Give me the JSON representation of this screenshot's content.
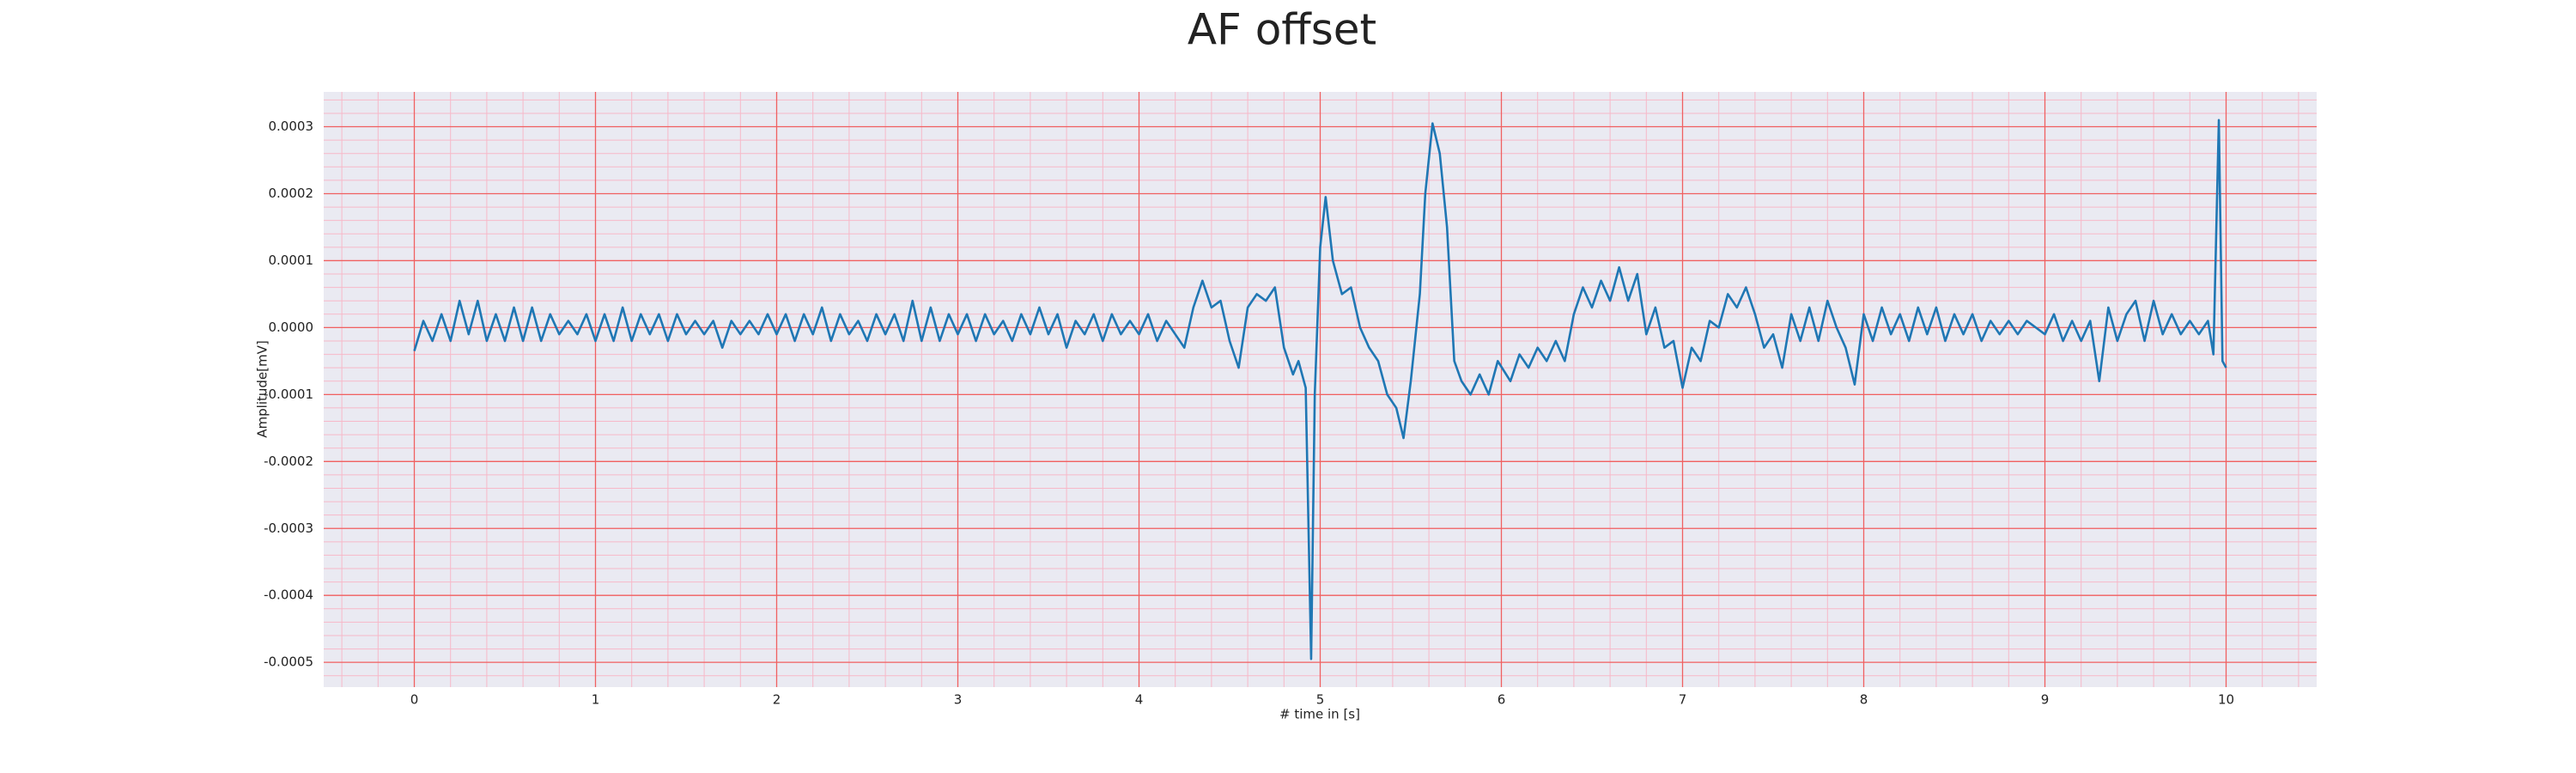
{
  "chart_data": {
    "type": "line",
    "title": "AF offset",
    "xlabel": "# time in [s]",
    "ylabel": "Amplitude[mV]",
    "color": "#1f77b4",
    "grid": true,
    "minor_grid": true,
    "xlim": [
      -0.5,
      10.5
    ],
    "xticks": [
      0,
      1,
      2,
      3,
      4,
      5,
      6,
      7,
      8,
      9,
      10
    ],
    "ylim": [
      -0.000537,
      0.000352
    ],
    "yticks": [
      {
        "value": -0.0005,
        "label": "-0.0005"
      },
      {
        "value": -0.0004,
        "label": "-0.0004"
      },
      {
        "value": -0.0003,
        "label": "-0.0003"
      },
      {
        "value": -0.0002,
        "label": "-0.0002"
      },
      {
        "value": -0.0001,
        "label": "-0.0001"
      },
      {
        "value": 0,
        "label": "0.0000"
      },
      {
        "value": 0.0001,
        "label": "0.0001"
      },
      {
        "value": 0.0002,
        "label": "0.0002"
      },
      {
        "value": 0.0003,
        "label": "0.0003"
      }
    ],
    "x": [
      0,
      0.05,
      0.1,
      0.15,
      0.2,
      0.25,
      0.3,
      0.35,
      0.4,
      0.45,
      0.5,
      0.55,
      0.6,
      0.65,
      0.7,
      0.75,
      0.8,
      0.85,
      0.9,
      0.95,
      1.0,
      1.05,
      1.1,
      1.15,
      1.2,
      1.25,
      1.3,
      1.35,
      1.4,
      1.45,
      1.5,
      1.55,
      1.6,
      1.65,
      1.7,
      1.75,
      1.8,
      1.85,
      1.9,
      1.95,
      2.0,
      2.05,
      2.1,
      2.15,
      2.2,
      2.25,
      2.3,
      2.35,
      2.4,
      2.45,
      2.5,
      2.55,
      2.6,
      2.65,
      2.7,
      2.75,
      2.8,
      2.85,
      2.9,
      2.95,
      3.0,
      3.05,
      3.1,
      3.15,
      3.2,
      3.25,
      3.3,
      3.35,
      3.4,
      3.45,
      3.5,
      3.55,
      3.6,
      3.65,
      3.7,
      3.75,
      3.8,
      3.85,
      3.9,
      3.95,
      4.0,
      4.05,
      4.1,
      4.15,
      4.2,
      4.25,
      4.3,
      4.35,
      4.4,
      4.45,
      4.5,
      4.55,
      4.6,
      4.65,
      4.7,
      4.75,
      4.8,
      4.85,
      4.88,
      4.92,
      4.95,
      4.97,
      5.0,
      5.03,
      5.07,
      5.12,
      5.17,
      5.22,
      5.27,
      5.32,
      5.37,
      5.42,
      5.46,
      5.5,
      5.55,
      5.58,
      5.62,
      5.66,
      5.7,
      5.74,
      5.78,
      5.83,
      5.88,
      5.93,
      5.98,
      6.05,
      6.1,
      6.15,
      6.2,
      6.25,
      6.3,
      6.35,
      6.4,
      6.45,
      6.5,
      6.55,
      6.6,
      6.65,
      6.7,
      6.75,
      6.8,
      6.85,
      6.9,
      6.95,
      7.0,
      7.05,
      7.1,
      7.15,
      7.2,
      7.25,
      7.3,
      7.35,
      7.4,
      7.45,
      7.5,
      7.55,
      7.6,
      7.65,
      7.7,
      7.75,
      7.8,
      7.85,
      7.9,
      7.95,
      8.0,
      8.05,
      8.1,
      8.15,
      8.2,
      8.25,
      8.3,
      8.35,
      8.4,
      8.45,
      8.5,
      8.55,
      8.6,
      8.65,
      8.7,
      8.75,
      8.8,
      8.85,
      8.9,
      8.95,
      9.0,
      9.05,
      9.1,
      9.15,
      9.2,
      9.25,
      9.3,
      9.35,
      9.4,
      9.45,
      9.5,
      9.55,
      9.6,
      9.65,
      9.7,
      9.75,
      9.8,
      9.85,
      9.9,
      9.93,
      9.96,
      9.98,
      10.0
    ],
    "values": [
      -3.5e-05,
      1e-05,
      -2e-05,
      2e-05,
      -2e-05,
      4e-05,
      -1e-05,
      4e-05,
      -2e-05,
      2e-05,
      -2e-05,
      3e-05,
      -2e-05,
      3e-05,
      -2e-05,
      2e-05,
      -1e-05,
      1e-05,
      -1e-05,
      2e-05,
      -2e-05,
      2e-05,
      -2e-05,
      3e-05,
      -2e-05,
      2e-05,
      -1e-05,
      2e-05,
      -2e-05,
      2e-05,
      -1e-05,
      1e-05,
      -1e-05,
      1e-05,
      -3e-05,
      1e-05,
      -1e-05,
      1e-05,
      -1e-05,
      2e-05,
      -1e-05,
      2e-05,
      -2e-05,
      2e-05,
      -1e-05,
      3e-05,
      -2e-05,
      2e-05,
      -1e-05,
      1e-05,
      -2e-05,
      2e-05,
      -1e-05,
      2e-05,
      -2e-05,
      4e-05,
      -2e-05,
      3e-05,
      -2e-05,
      2e-05,
      -1e-05,
      2e-05,
      -2e-05,
      2e-05,
      -1e-05,
      1e-05,
      -2e-05,
      2e-05,
      -1e-05,
      3e-05,
      -1e-05,
      2e-05,
      -3e-05,
      1e-05,
      -1e-05,
      2e-05,
      -2e-05,
      2e-05,
      -1e-05,
      1e-05,
      -1e-05,
      2e-05,
      -2e-05,
      1e-05,
      -1e-05,
      -3e-05,
      3e-05,
      7e-05,
      3e-05,
      4e-05,
      -2e-05,
      -6e-05,
      3e-05,
      5e-05,
      4e-05,
      6e-05,
      -3e-05,
      -7e-05,
      -5e-05,
      -9e-05,
      -0.000495,
      -0.0001,
      0.00012,
      0.000195,
      0.0001,
      5e-05,
      6e-05,
      0,
      -3e-05,
      -5e-05,
      -0.0001,
      -0.00012,
      -0.000165,
      -8e-05,
      5e-05,
      0.0002,
      0.000305,
      0.00026,
      0.00015,
      -5e-05,
      -8e-05,
      -0.0001,
      -7e-05,
      -0.0001,
      -5e-05,
      -8e-05,
      -4e-05,
      -6e-05,
      -3e-05,
      -5e-05,
      -2e-05,
      -5e-05,
      2e-05,
      6e-05,
      3e-05,
      7e-05,
      4e-05,
      9e-05,
      4e-05,
      8e-05,
      -1e-05,
      3e-05,
      -3e-05,
      -2e-05,
      -9e-05,
      -3e-05,
      -5e-05,
      1e-05,
      0,
      5e-05,
      3e-05,
      6e-05,
      2e-05,
      -3e-05,
      -1e-05,
      -6e-05,
      2e-05,
      -2e-05,
      3e-05,
      -2e-05,
      4e-05,
      0,
      -3e-05,
      -8.5e-05,
      2e-05,
      -2e-05,
      3e-05,
      -1e-05,
      2e-05,
      -2e-05,
      3e-05,
      -1e-05,
      3e-05,
      -2e-05,
      2e-05,
      -1e-05,
      2e-05,
      -2e-05,
      1e-05,
      -1e-05,
      1e-05,
      -1e-05,
      1e-05,
      0,
      -1e-05,
      2e-05,
      -2e-05,
      1e-05,
      -2e-05,
      1e-05,
      -8e-05,
      3e-05,
      -2e-05,
      2e-05,
      4e-05,
      -2e-05,
      4e-05,
      -1e-05,
      2e-05,
      -1e-05,
      1e-05,
      -1e-05,
      1e-05,
      -4e-05,
      0.00031,
      -5e-05,
      -6e-05
    ]
  }
}
